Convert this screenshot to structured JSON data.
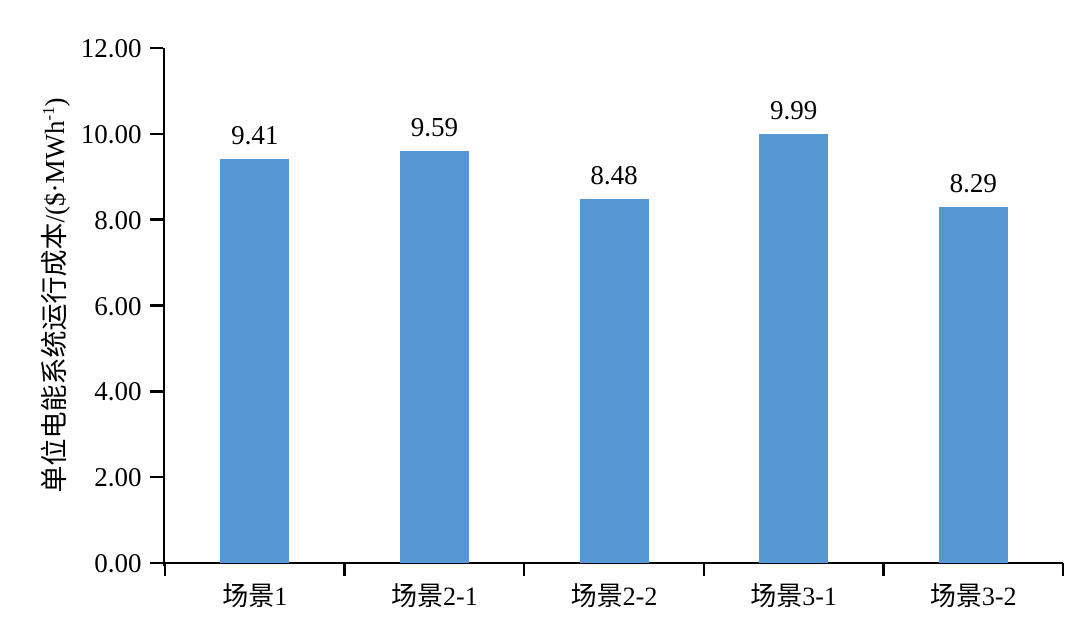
{
  "chart_data": {
    "type": "bar",
    "title": "",
    "categories": [
      "场景1",
      "场景2-1",
      "场景2-2",
      "场景3-1",
      "场景3-2"
    ],
    "values": [
      9.41,
      9.59,
      8.48,
      9.99,
      8.29
    ],
    "value_labels": [
      "9.41",
      "9.59",
      "8.48",
      "9.99",
      "8.29"
    ],
    "series": [
      {
        "name": "单位电能系统运行成本",
        "values": [
          9.41,
          9.59,
          8.48,
          9.99,
          8.29
        ]
      }
    ],
    "xlabel": "",
    "ylabel_main": "单位电能系统运行成本/($·MWh",
    "ylabel_sup": "-1",
    "ylabel_close": ")",
    "ylim": [
      0,
      12
    ],
    "ytick_step": 2,
    "yticks": [
      {
        "v": 0,
        "label": "0.00"
      },
      {
        "v": 2,
        "label": "2.00"
      },
      {
        "v": 4,
        "label": "4.00"
      },
      {
        "v": 6,
        "label": "6.00"
      },
      {
        "v": 8,
        "label": "8.00"
      },
      {
        "v": 10,
        "label": "10.00"
      },
      {
        "v": 12,
        "label": "12.00"
      }
    ],
    "grid": false,
    "legend": false,
    "bar_color": "#5598d4",
    "axis_color": "#000000",
    "text_color": "#000000",
    "background_color": "#ffffff"
  }
}
